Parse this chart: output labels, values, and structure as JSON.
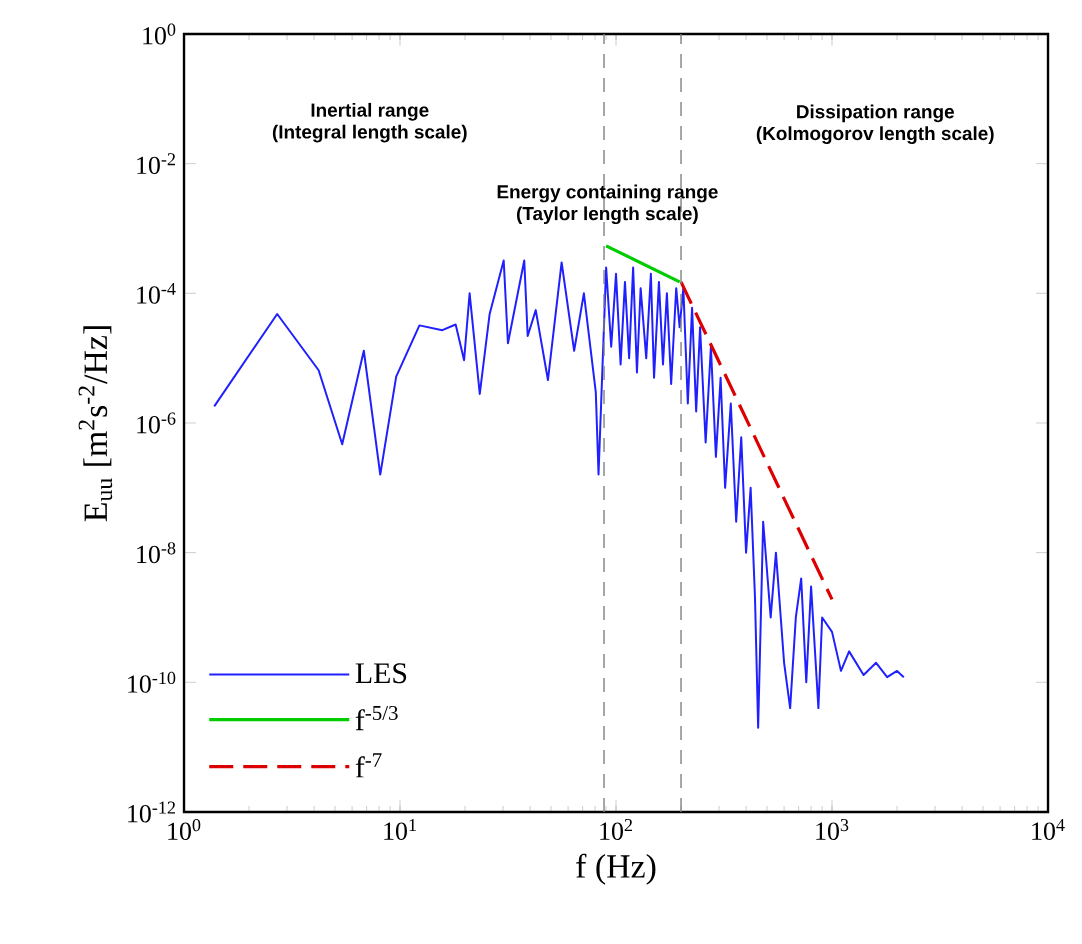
{
  "chart_data": {
    "type": "line",
    "xlabel": "f (Hz)",
    "ylabel": "E$_{uu}$ [m$^{2}$s$^{-2}$/Hz]",
    "log": "xy",
    "xlim": [
      1,
      10000
    ],
    "ylim": [
      1e-12,
      1
    ],
    "xticks": [
      {
        "value": 1,
        "label": "10$^{0}$"
      },
      {
        "value": 10,
        "label": "10$^{1}$"
      },
      {
        "value": 100,
        "label": "10$^{2}$"
      },
      {
        "value": 1000,
        "label": "10$^{3}$"
      },
      {
        "value": 10000,
        "label": "10$^{4}$"
      }
    ],
    "yticks": [
      {
        "value": 1e-12,
        "label": "10$^{-12}$"
      },
      {
        "value": 1e-10,
        "label": "10$^{-10}$"
      },
      {
        "value": 1e-08,
        "label": "10$^{-8}$"
      },
      {
        "value": 1e-06,
        "label": "10$^{-6}$"
      },
      {
        "value": 0.0001,
        "label": "10$^{-4}$"
      },
      {
        "value": 0.01,
        "label": "10$^{-2}$"
      },
      {
        "value": 1,
        "label": "10$^{0}$"
      }
    ],
    "legend": "bottom left",
    "grid": false,
    "ref_lines": [
      {
        "axis": "x",
        "value": 88,
        "color": "#808080",
        "line_style": "dashed"
      },
      {
        "axis": "x",
        "value": 200,
        "color": "#808080",
        "line_style": "dashed"
      }
    ],
    "annotations": [
      "Inertial range",
      "(Integral length scale)",
      "Energy containing range",
      "(Taylor length scale)",
      "Dissipation range",
      "(Kolmogorov length scale)"
    ],
    "series": [
      {
        "name": "LES",
        "color": "#2020ff",
        "line_style": "solid",
        "x": [
          1.38,
          2.7,
          4.2,
          5.4,
          6.8,
          8.1,
          9.6,
          12.3,
          15.7,
          18.1,
          19.8,
          21,
          23.4,
          26,
          30.2,
          31.6,
          37.6,
          39,
          42.5,
          48.4,
          56,
          64,
          71,
          80.6,
          83,
          90,
          95,
          100,
          105,
          110,
          115,
          120,
          125,
          130,
          138,
          145,
          150,
          158,
          165,
          172,
          180,
          190,
          197,
          205,
          215,
          225,
          235,
          245,
          260,
          275,
          290,
          305,
          320,
          340,
          360,
          380,
          400,
          420,
          440,
          455,
          480,
          520,
          550,
          600,
          640,
          680,
          720,
          760,
          800,
          865,
          900,
          1000,
          1100,
          1200,
          1400,
          1600,
          1800,
          2000,
          2150
        ],
        "values": [
          1.8e-06,
          4.8e-05,
          6.5e-06,
          4.7e-07,
          1.3e-05,
          1.6e-07,
          5.2e-06,
          3.2e-05,
          2.7e-05,
          3.3e-05,
          9.3e-06,
          0.0001,
          2.8e-06,
          4.8e-05,
          0.00032,
          1.7e-05,
          0.00032,
          2.2e-05,
          5.5e-05,
          4.6e-06,
          0.0003,
          1.3e-05,
          0.0001,
          3e-06,
          1.6e-07,
          0.00025,
          1.5e-05,
          0.0002,
          8e-06,
          0.00015,
          1e-05,
          0.00025,
          6e-06,
          0.00012,
          1e-05,
          0.0002,
          5e-06,
          0.00015,
          8e-06,
          0.0001,
          4e-06,
          0.00012,
          3e-05,
          0.00012,
          2e-06,
          6e-05,
          1.5e-06,
          3e-05,
          5e-07,
          1.5e-05,
          3e-07,
          5e-06,
          1e-07,
          2e-06,
          3e-08,
          6e-07,
          1e-08,
          1e-07,
          2e-09,
          2e-11,
          3e-08,
          1e-09,
          1e-08,
          2e-10,
          4e-11,
          1e-09,
          4e-09,
          1e-10,
          3e-09,
          4e-11,
          1e-09,
          6e-10,
          1.5e-10,
          3e-10,
          1.3e-10,
          2e-10,
          1.2e-10,
          1.5e-10,
          1.2e-10
        ]
      },
      {
        "name": "f$^{-5/3}$",
        "color": "#00cc00",
        "line_style": "solid",
        "x": [
          90,
          197
        ],
        "values": [
          0.00054,
          0.00015
        ]
      },
      {
        "name": "f$^{-7}$",
        "color": "#dd0000",
        "line_style": "dashed",
        "x": [
          200,
          1000
        ],
        "values": [
          0.00015,
          1.9e-09
        ]
      }
    ]
  }
}
